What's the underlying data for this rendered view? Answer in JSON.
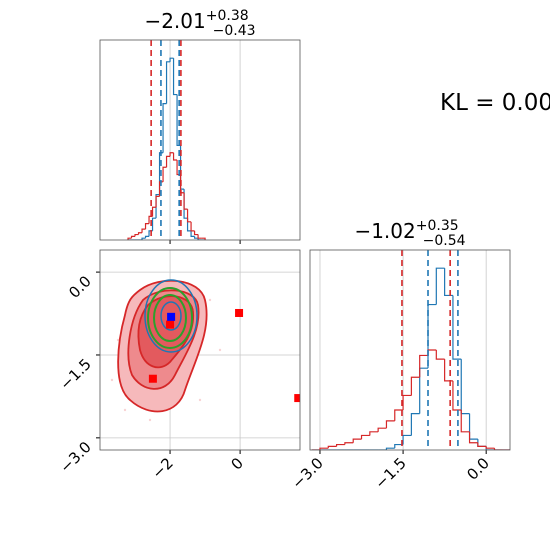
{
  "annotation": "KL = 0.00",
  "chart_data": [
    {
      "type": "histogram",
      "title": "−2.01",
      "title_sup": "+0.38",
      "title_sub": "−0.43",
      "bins": [
        -3.2,
        -3.1,
        -3.0,
        -2.9,
        -2.8,
        -2.7,
        -2.6,
        -2.5,
        -2.4,
        -2.3,
        -2.2,
        -2.1,
        -2.0,
        -1.9,
        -1.8,
        -1.7,
        -1.6,
        -1.5,
        -1.4,
        -1.3,
        -1.2,
        -1.1,
        -1.0
      ],
      "series": [
        {
          "color": "#1f77b4",
          "values": [
            0,
            0,
            0,
            0,
            1,
            2,
            5,
            12,
            25,
            48,
            75,
            98,
            100,
            80,
            52,
            28,
            12,
            5,
            2,
            1,
            0,
            0
          ]
        },
        {
          "color": "#d62728",
          "values": [
            1,
            2,
            3,
            4,
            6,
            9,
            13,
            18,
            24,
            32,
            40,
            46,
            48,
            44,
            36,
            26,
            17,
            10,
            5,
            3,
            1,
            1
          ]
        }
      ],
      "vlines": [
        {
          "value": -2.54,
          "color": "#d62728"
        },
        {
          "value": -1.69,
          "color": "#d62728"
        },
        {
          "value": -2.26,
          "color": "#1f77b4"
        },
        {
          "value": -1.74,
          "color": "#1f77b4"
        }
      ],
      "xlim": [
        -4,
        1.71
      ],
      "ylim": [
        0,
        110
      ],
      "xticks": [
        -2,
        0
      ],
      "grid": true,
      "show_xticklabels": false
    },
    {
      "type": "scatter",
      "markers": [
        {
          "color": "#ff0000",
          "x": -2.49,
          "y": -1.93
        },
        {
          "color": "#ff0000",
          "x": -0.03,
          "y": -0.74
        },
        {
          "color": "#ff0000",
          "x": 1.66,
          "y": -2.28
        },
        {
          "color": "#ff0000",
          "x": -2.0,
          "y": -0.95
        },
        {
          "color": "#0000ff",
          "x": -1.97,
          "y": -0.81
        }
      ],
      "xlim": [
        -4,
        1.71
      ],
      "ylim": [
        -3.22,
        0.4
      ],
      "xticks": [
        {
          "value": -2,
          "label": "−2"
        },
        0
      ],
      "yticks": [
        {
          "value": 0,
          "label": "0.0"
        },
        {
          "value": -1.5,
          "label": "−1.5"
        },
        {
          "value": -3,
          "label": "−3.0"
        }
      ],
      "grid": true
    },
    {
      "type": "histogram",
      "title": "−1.02",
      "title_sup": "+0.35",
      "title_sub": "−0.54",
      "bins": [
        -3.15,
        -3.0,
        -2.85,
        -2.7,
        -2.55,
        -2.4,
        -2.25,
        -2.1,
        -1.95,
        -1.8,
        -1.65,
        -1.5,
        -1.35,
        -1.2,
        -1.05,
        -0.9,
        -0.75,
        -0.6,
        -0.45,
        -0.3,
        -0.15,
        0.0,
        0.15,
        0.3,
        0.45
      ],
      "series": [
        {
          "color": "#1f77b4",
          "values": [
            0,
            0,
            0,
            0,
            0,
            0,
            0,
            0,
            0,
            1,
            3,
            8,
            20,
            45,
            80,
            100,
            85,
            50,
            20,
            6,
            2,
            0,
            0,
            0
          ]
        },
        {
          "color": "#d62728",
          "values": [
            0,
            1,
            2,
            3,
            4,
            6,
            8,
            10,
            12,
            16,
            22,
            30,
            40,
            52,
            55,
            50,
            38,
            22,
            10,
            4,
            2,
            1,
            0,
            0
          ]
        }
      ],
      "vlines": [
        {
          "value": -1.52,
          "color": "#d62728"
        },
        {
          "value": -0.65,
          "color": "#d62728"
        },
        {
          "value": -1.05,
          "color": "#1f77b4"
        },
        {
          "value": -0.51,
          "color": "#1f77b4"
        }
      ],
      "xlim": [
        -3.18,
        0.43
      ],
      "ylim": [
        0,
        110
      ],
      "xticks": [
        {
          "value": -3,
          "label": "−3.0"
        },
        {
          "value": -1.5,
          "label": "−1.5"
        },
        {
          "value": 0,
          "label": "0.0"
        }
      ],
      "grid": true,
      "show_xticklabels": true
    }
  ]
}
